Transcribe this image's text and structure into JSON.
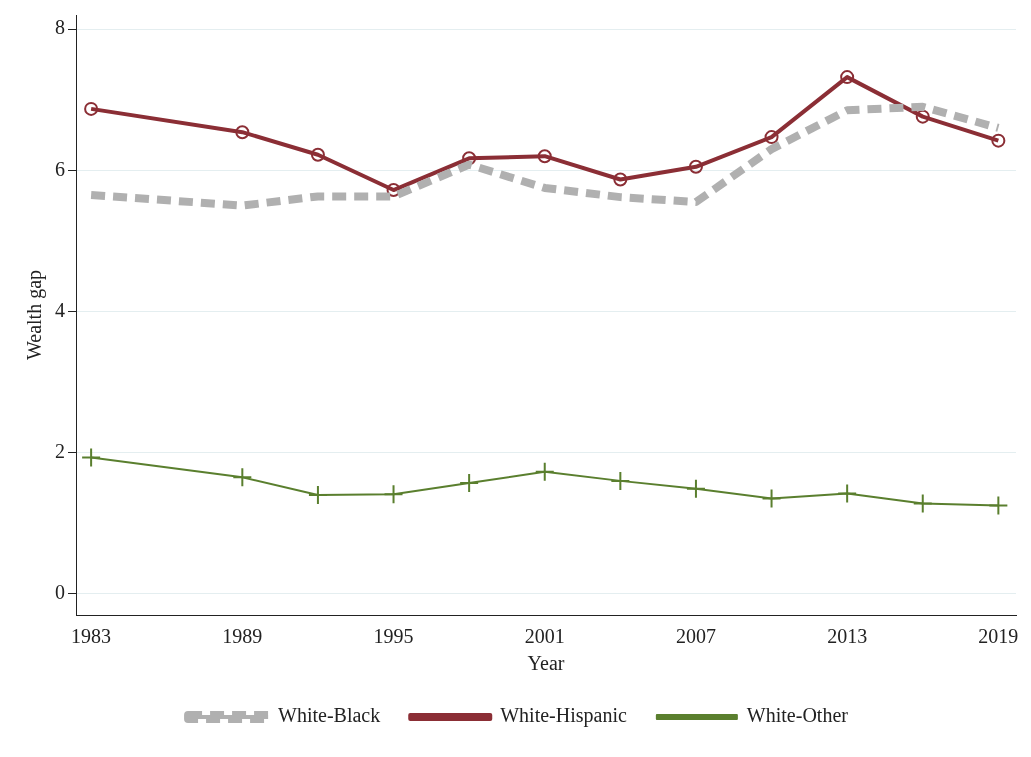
{
  "chart_data": {
    "type": "line",
    "xlabel": "Year",
    "ylabel": "Wealth gap",
    "x": [
      1983,
      1989,
      1992,
      1995,
      1998,
      2001,
      2004,
      2007,
      2010,
      2013,
      2016,
      2019
    ],
    "xlim": [
      1982.4,
      2019.7
    ],
    "xticks": [
      1983,
      1989,
      1995,
      2001,
      2007,
      2013,
      2019
    ],
    "ylim": [
      -0.3,
      8.2
    ],
    "yticks": [
      0,
      2,
      4,
      6,
      8
    ],
    "grid": "y",
    "legend": "bottom",
    "series": [
      {
        "name": "White-Black",
        "color": "#b0b0b0",
        "line_style": "dashed",
        "marker": "none",
        "values": [
          5.65,
          5.5,
          5.63,
          5.63,
          6.08,
          5.75,
          5.62,
          5.55,
          6.3,
          6.85,
          6.9,
          6.6
        ]
      },
      {
        "name": "White-Hispanic",
        "color": "#8b2e35",
        "line_style": "solid",
        "marker": "circle",
        "values": [
          6.87,
          6.54,
          6.22,
          5.72,
          6.17,
          6.2,
          5.87,
          6.05,
          6.47,
          7.32,
          6.76,
          6.42
        ]
      },
      {
        "name": "White-Other",
        "color": "#5a7f2e",
        "line_style": "solid",
        "marker": "cross",
        "values": [
          1.93,
          1.65,
          1.4,
          1.41,
          1.57,
          1.73,
          1.6,
          1.49,
          1.35,
          1.42,
          1.28,
          1.25
        ]
      }
    ]
  }
}
